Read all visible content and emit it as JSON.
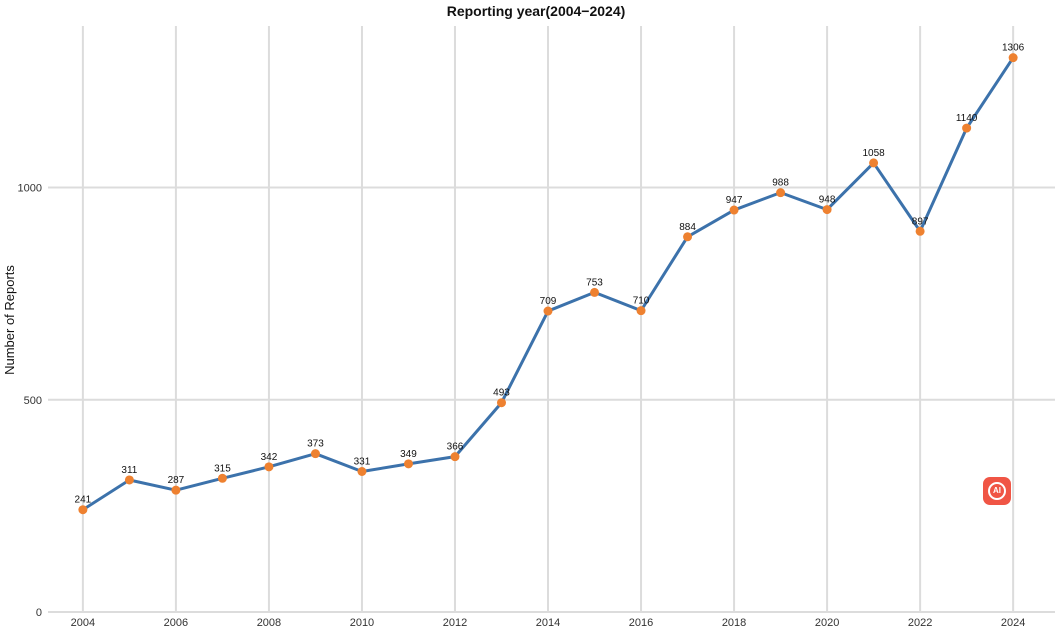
{
  "chart_data": {
    "type": "line",
    "title": "Reporting year(2004−2024)",
    "xlabel": "",
    "ylabel": "Number of Reports",
    "x": [
      2004,
      2005,
      2006,
      2007,
      2008,
      2009,
      2010,
      2011,
      2012,
      2013,
      2014,
      2015,
      2016,
      2017,
      2018,
      2019,
      2020,
      2021,
      2022,
      2023,
      2024
    ],
    "series": [
      {
        "values": [
          241,
          311,
          287,
          315,
          342,
          373,
          331,
          349,
          366,
          493,
          709,
          753,
          710,
          884,
          947,
          988,
          948,
          1058,
          897,
          1140,
          1306
        ],
        "labels": [
          "241",
          "311",
          "287",
          "315",
          "342",
          "373",
          "331",
          "349",
          "366",
          "493",
          "709",
          "753",
          "710",
          "884",
          "947",
          "988",
          "948",
          "1058",
          "897",
          "1140",
          "1306"
        ]
      }
    ],
    "x_ticks": [
      "2004",
      "2006",
      "2008",
      "2010",
      "2012",
      "2014",
      "2016",
      "2018",
      "2020",
      "2022",
      "2024"
    ],
    "y_ticks": [
      "0",
      "500",
      "1000"
    ],
    "xlim": [
      2003.25,
      2024.9
    ],
    "ylim": [
      0,
      1390
    ],
    "grid": true,
    "legend": "none",
    "colors": {
      "line": "#3c72ab",
      "point": "#ee8130",
      "grid": "#dcdcdc"
    }
  },
  "watermark": {
    "icon": "ai-badge-icon",
    "text": "AI"
  }
}
